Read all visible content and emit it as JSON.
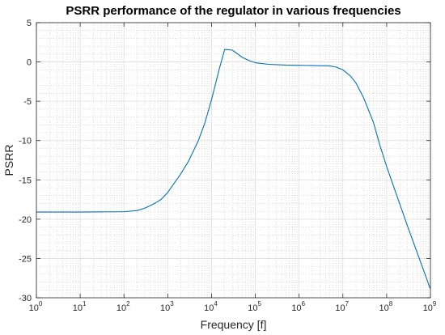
{
  "chart_data": {
    "type": "line",
    "title": "PSRR performance of the regulator in various frequencies",
    "xlabel": "Frequency [f]",
    "ylabel": "PSRR",
    "xscale": "log",
    "xlim": [
      1,
      1000000000
    ],
    "ylim": [
      -30,
      5
    ],
    "grid": true,
    "minor_grid": true,
    "x_ticks": [
      {
        "value": 1,
        "base": "10",
        "exp": "0"
      },
      {
        "value": 10,
        "base": "10",
        "exp": "1"
      },
      {
        "value": 100,
        "base": "10",
        "exp": "2"
      },
      {
        "value": 1000,
        "base": "10",
        "exp": "3"
      },
      {
        "value": 10000,
        "base": "10",
        "exp": "4"
      },
      {
        "value": 100000,
        "base": "10",
        "exp": "5"
      },
      {
        "value": 1000000,
        "base": "10",
        "exp": "6"
      },
      {
        "value": 10000000,
        "base": "10",
        "exp": "7"
      },
      {
        "value": 100000000,
        "base": "10",
        "exp": "8"
      },
      {
        "value": 1000000000,
        "base": "10",
        "exp": "9"
      }
    ],
    "y_ticks": [
      {
        "value": 5,
        "label": "5"
      },
      {
        "value": 0,
        "label": "0"
      },
      {
        "value": -5,
        "label": "-5"
      },
      {
        "value": -10,
        "label": "-10"
      },
      {
        "value": -15,
        "label": "-15"
      },
      {
        "value": -20,
        "label": "-20"
      },
      {
        "value": -25,
        "label": "-25"
      },
      {
        "value": -30,
        "label": "-30"
      }
    ],
    "series": [
      {
        "color": "#0072bd",
        "x": [
          1,
          10,
          100,
          200,
          300,
          500,
          700,
          1000,
          1500,
          2000,
          3000,
          5000,
          7000,
          10000,
          15000,
          20000,
          30000,
          50000,
          70000,
          100000,
          200000,
          500000,
          1000000,
          2000000,
          5000000,
          7000000,
          10000000,
          15000000,
          20000000,
          30000000,
          50000000,
          70000000,
          100000000,
          300000000,
          1000000000
        ],
        "y": [
          -19.1,
          -19.1,
          -19.05,
          -18.9,
          -18.6,
          -18.0,
          -17.5,
          -16.6,
          -15.2,
          -14.2,
          -12.6,
          -10.0,
          -7.8,
          -4.8,
          -0.9,
          1.6,
          1.5,
          0.6,
          0.2,
          -0.1,
          -0.3,
          -0.4,
          -0.42,
          -0.45,
          -0.5,
          -0.65,
          -1.0,
          -1.8,
          -2.7,
          -4.6,
          -7.7,
          -10.6,
          -13.3,
          -20.9,
          -28.9
        ]
      }
    ]
  }
}
